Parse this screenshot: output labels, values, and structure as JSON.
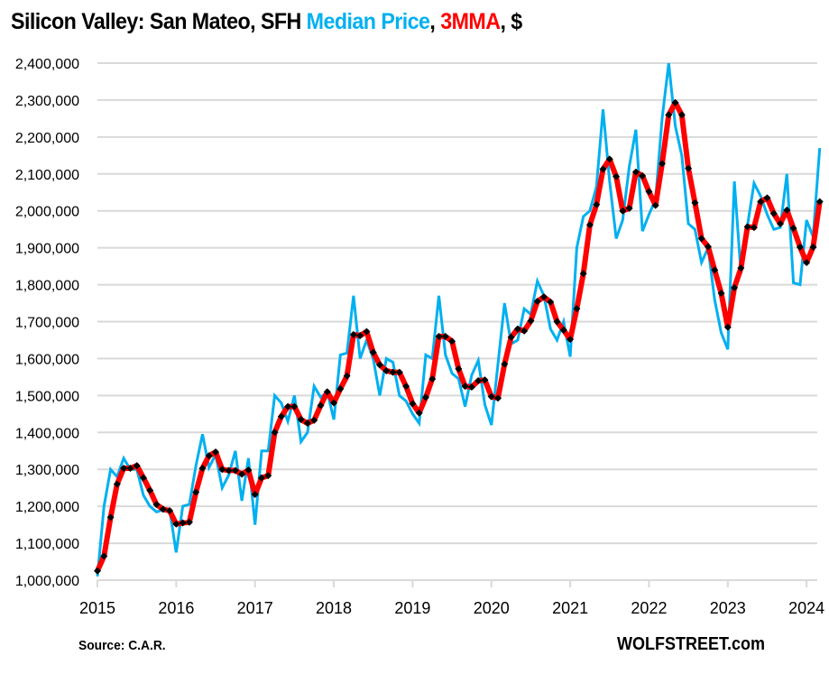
{
  "title": {
    "part1": "Silicon Valley: San Mateo, SFH ",
    "part2": "Median Price",
    "part3": ", ",
    "part4": "3MMA",
    "part5": ", $"
  },
  "footer": {
    "source": "Source: C.A.R.",
    "brand": "WOLFSTREET.com"
  },
  "chart_data": {
    "type": "line",
    "title": "Silicon Valley: San Mateo, SFH Median Price, 3MMA, $",
    "xlabel": "",
    "ylabel": "",
    "ylim": [
      1000000,
      2400000
    ],
    "yticks": [
      1000000,
      1100000,
      1200000,
      1300000,
      1400000,
      1500000,
      1600000,
      1700000,
      1800000,
      1900000,
      2000000,
      2100000,
      2200000,
      2300000,
      2400000
    ],
    "ytick_labels": [
      "1,000,000",
      "1,100,000",
      "1,200,000",
      "1,300,000",
      "1,400,000",
      "1,500,000",
      "1,600,000",
      "1,700,000",
      "1,800,000",
      "1,900,000",
      "2,000,000",
      "2,100,000",
      "2,200,000",
      "2,300,000",
      "2,400,000"
    ],
    "xticks": [
      "2015",
      "2016",
      "2017",
      "2018",
      "2019",
      "2020",
      "2021",
      "2022",
      "2023",
      "2024"
    ],
    "x_start": "2015-01",
    "x_end": "2024-03",
    "frequency": "monthly",
    "grid": true,
    "legend": "in-title",
    "series": [
      {
        "name": "Median Price",
        "color": "#00b0f0",
        "values": [
          1010000,
          1200000,
          1300000,
          1280000,
          1330000,
          1300000,
          1300000,
          1230000,
          1200000,
          1185000,
          1190000,
          1190000,
          1075000,
          1200000,
          1205000,
          1310000,
          1395000,
          1305000,
          1340000,
          1250000,
          1285000,
          1350000,
          1215000,
          1330000,
          1150000,
          1350000,
          1350000,
          1500000,
          1480000,
          1430000,
          1500000,
          1375000,
          1400000,
          1525000,
          1495000,
          1510000,
          1435000,
          1610000,
          1615000,
          1770000,
          1600000,
          1650000,
          1600000,
          1500000,
          1600000,
          1590000,
          1500000,
          1485000,
          1450000,
          1425000,
          1610000,
          1600000,
          1770000,
          1610000,
          1560000,
          1545000,
          1470000,
          1555000,
          1595000,
          1475000,
          1420000,
          1585000,
          1750000,
          1640000,
          1650000,
          1735000,
          1720000,
          1810000,
          1770000,
          1680000,
          1650000,
          1700000,
          1605000,
          1900000,
          1985000,
          2000000,
          2065000,
          2275000,
          2080000,
          1925000,
          1975000,
          2120000,
          2220000,
          1945000,
          1990000,
          2030000,
          2250000,
          2400000,
          2230000,
          2150000,
          1965000,
          1950000,
          1860000,
          1900000,
          1760000,
          1670000,
          1625000,
          2080000,
          1830000,
          1960000,
          2075000,
          2040000,
          1990000,
          1950000,
          1955000,
          2100000,
          1805000,
          1800000,
          1975000,
          1930000,
          2170000
        ]
      },
      {
        "name": "3MMA",
        "color": "#ff0000",
        "values": [
          1025000,
          1065000,
          1170000,
          1260000,
          1303000,
          1303000,
          1310000,
          1277000,
          1243000,
          1205000,
          1192000,
          1188000,
          1152000,
          1155000,
          1157000,
          1238000,
          1303000,
          1337000,
          1347000,
          1300000,
          1297000,
          1297000,
          1287000,
          1298000,
          1232000,
          1277000,
          1283000,
          1400000,
          1443000,
          1470000,
          1470000,
          1435000,
          1425000,
          1433000,
          1473000,
          1510000,
          1480000,
          1518000,
          1553000,
          1665000,
          1662000,
          1673000,
          1617000,
          1583000,
          1567000,
          1563000,
          1563000,
          1525000,
          1478000,
          1453000,
          1495000,
          1545000,
          1660000,
          1660000,
          1647000,
          1572000,
          1525000,
          1523000,
          1540000,
          1542000,
          1497000,
          1493000,
          1585000,
          1658000,
          1680000,
          1675000,
          1702000,
          1755000,
          1767000,
          1753000,
          1700000,
          1677000,
          1652000,
          1735000,
          1830000,
          1962000,
          2017000,
          2113000,
          2140000,
          2093000,
          2000000,
          2007000,
          2105000,
          2095000,
          2052000,
          2015000,
          2128000,
          2260000,
          2293000,
          2260000,
          2115000,
          2022000,
          1925000,
          1903000,
          1840000,
          1777000,
          1685000,
          1792000,
          1845000,
          1957000,
          1955000,
          2025000,
          2035000,
          1993000,
          1965000,
          2002000,
          1953000,
          1902000,
          1860000,
          1902000,
          2025000
        ]
      }
    ]
  }
}
